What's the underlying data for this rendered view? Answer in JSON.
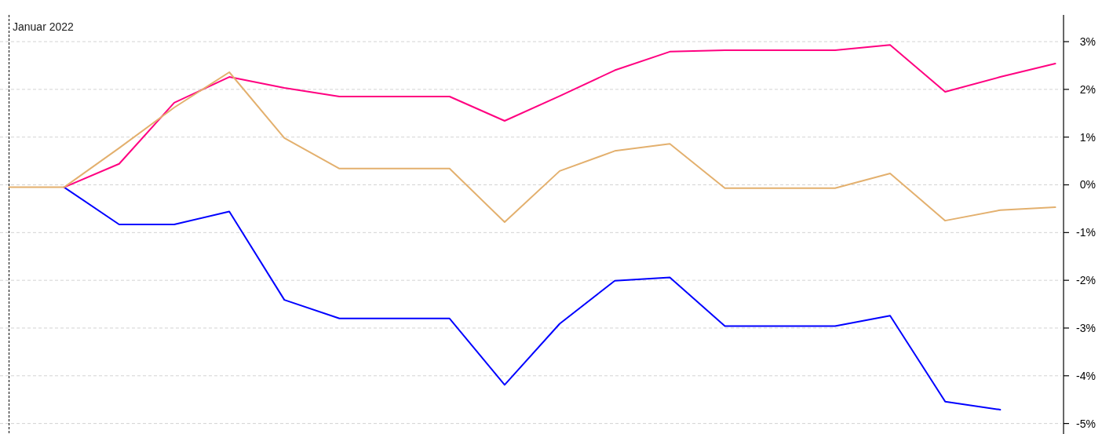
{
  "chart_data": {
    "type": "line",
    "categories": [
      null,
      null,
      null,
      null,
      null,
      null,
      null,
      null,
      null,
      null,
      null,
      null,
      null,
      null,
      null,
      null,
      null,
      null,
      null,
      null
    ],
    "series": [
      {
        "color": "#0000ff",
        "values": [
          null,
          -0.05,
          -0.83,
          -0.83,
          -0.56,
          -2.41,
          -2.8,
          -2.8,
          -2.8,
          -4.19,
          -2.91,
          -2.01,
          -1.94,
          -2.96,
          -2.96,
          -2.96,
          -2.74,
          -4.54,
          -4.71,
          null
        ]
      },
      {
        "color": "#ff0080",
        "values": [
          null,
          -0.05,
          0.44,
          1.72,
          2.26,
          2.03,
          1.85,
          1.85,
          1.85,
          1.34,
          1.86,
          2.4,
          2.79,
          2.82,
          2.82,
          2.82,
          2.93,
          1.95,
          2.26,
          2.54
        ]
      },
      {
        "color": "#e3b06e",
        "values": [
          -0.05,
          -0.05,
          0.77,
          1.62,
          2.36,
          0.98,
          0.34,
          0.34,
          0.34,
          -0.78,
          0.29,
          0.71,
          0.86,
          -0.07,
          -0.07,
          -0.07,
          0.24,
          -0.75,
          -0.53,
          -0.47
        ]
      }
    ],
    "ylim": [
      -5.22,
      3.56
    ],
    "yticks": [
      {
        "value": 3,
        "label": "3%"
      },
      {
        "value": 2,
        "label": "2%"
      },
      {
        "value": 1,
        "label": "1%"
      },
      {
        "value": 0,
        "label": "0%"
      },
      {
        "value": -1,
        "label": "-1%"
      },
      {
        "value": -2,
        "label": "-2%"
      },
      {
        "value": -3,
        "label": "-3%"
      },
      {
        "value": -4,
        "label": "-4%"
      },
      {
        "value": -5,
        "label": "-5%"
      }
    ],
    "grid": "y",
    "tick_labels": "y",
    "line_style": "solid",
    "annotations": [
      "Januar 2022"
    ]
  }
}
